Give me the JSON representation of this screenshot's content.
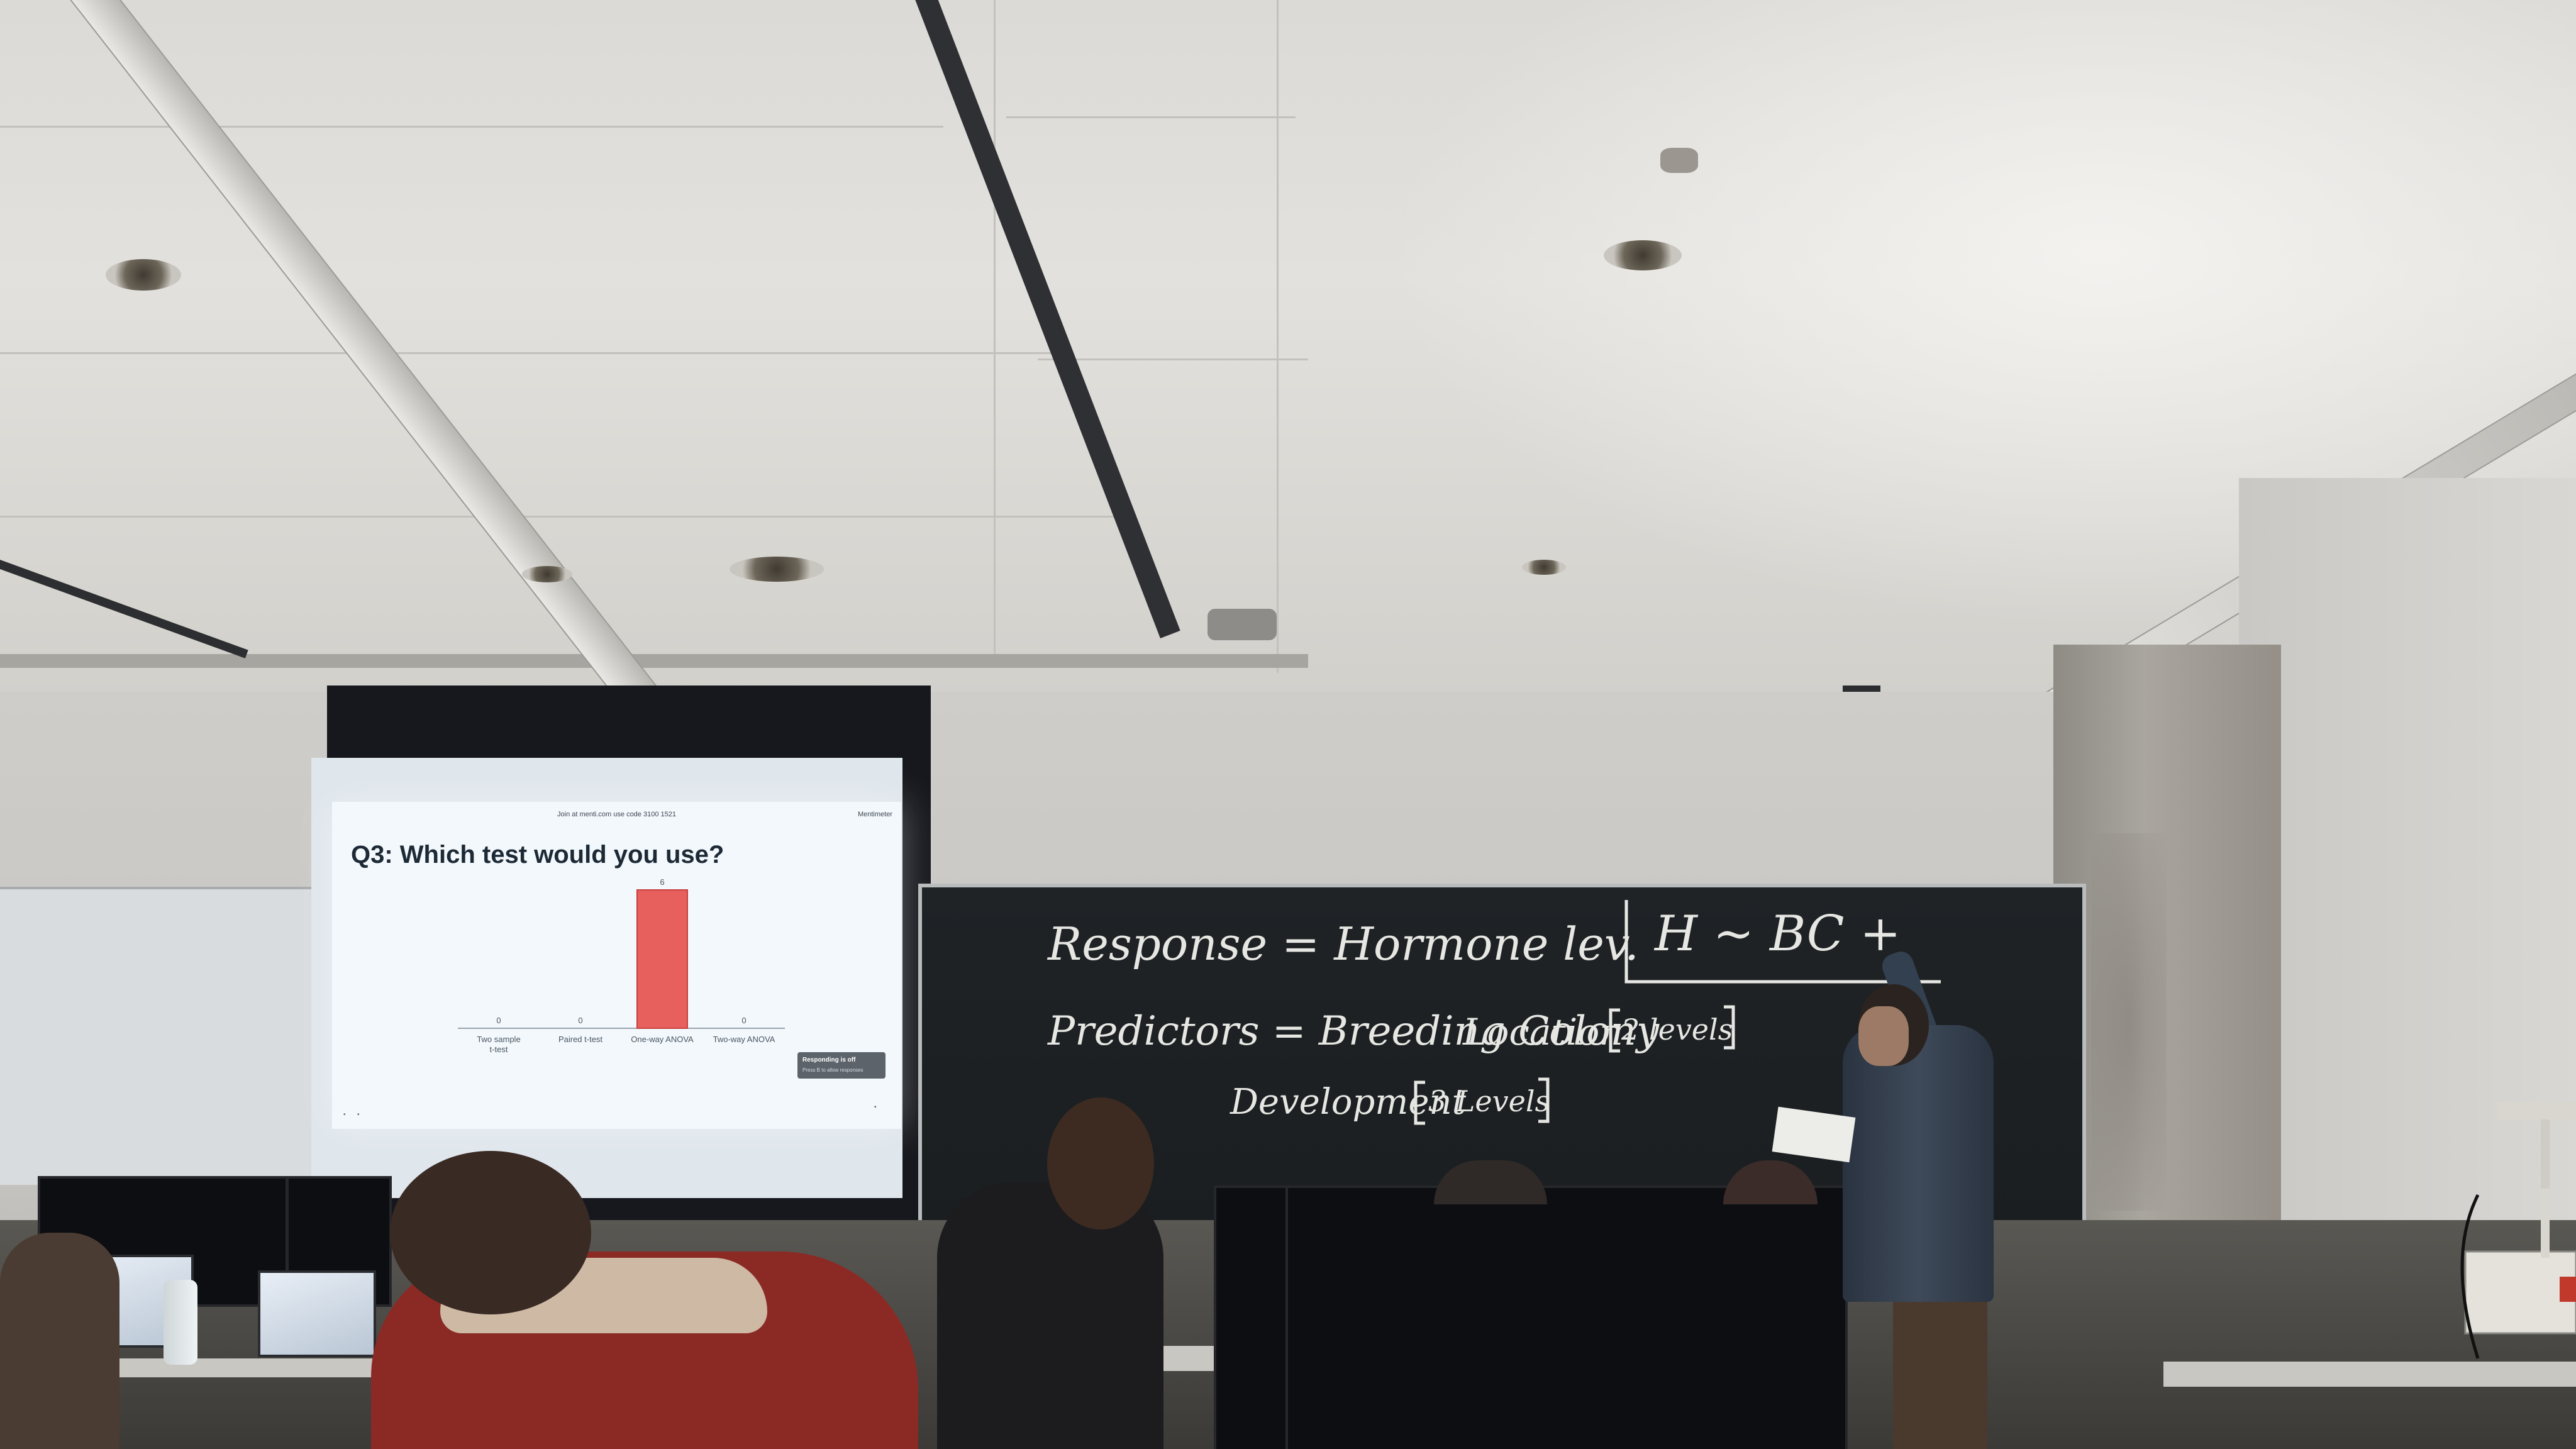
{
  "scene": {
    "slide": {
      "join_text": "Join at menti.com use code 3100 1521",
      "brand": "Mentimeter",
      "question": "Q3: Which test would you use?",
      "status_title": "Responding is off",
      "status_sub": "Press B to allow responses",
      "bar_color": "#e8605e"
    },
    "chalkboard": {
      "line1": "Response = Hormone lev.",
      "formula": "H ~ BC +",
      "line2_a": "Predictors = Breeding Colony",
      "line2_b": "Location",
      "line2_bracket": "2 levels",
      "line3_a": "Development",
      "line3_bracket": "3 Levels"
    }
  },
  "chart_data": {
    "type": "bar",
    "categories": [
      "Two sample t-test",
      "Paired t-test",
      "One-way ANOVA",
      "Two-way ANOVA"
    ],
    "values": [
      0,
      0,
      6,
      0
    ],
    "title": "Q3: Which test would you use?",
    "xlabel": "",
    "ylabel": "",
    "ylim": [
      0,
      6
    ],
    "grid": false
  }
}
